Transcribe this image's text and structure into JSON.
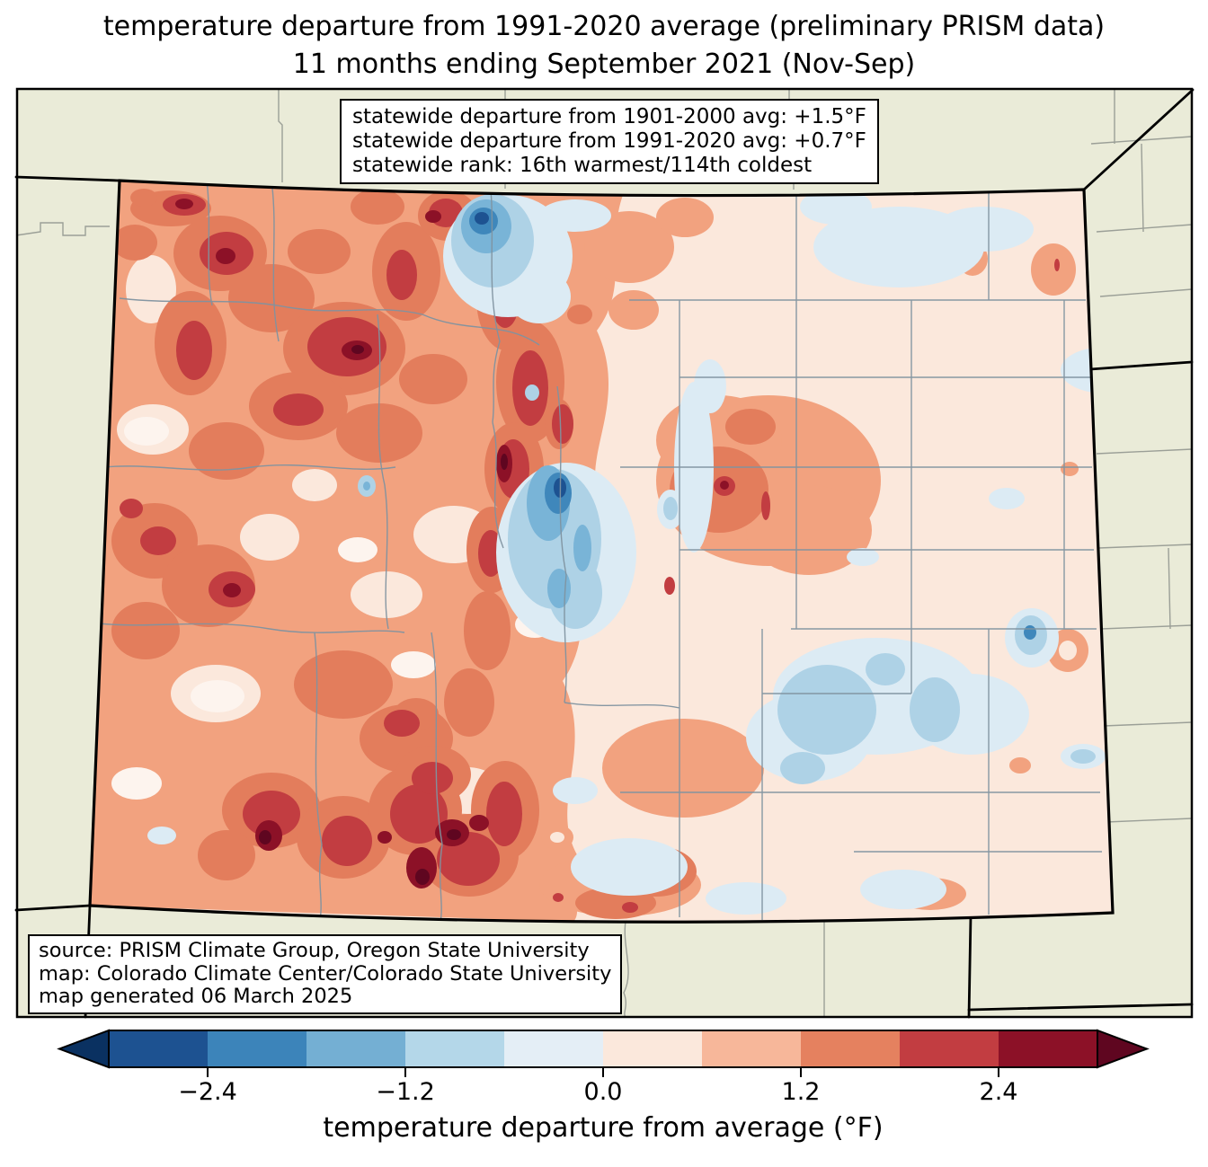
{
  "title": {
    "line1": "temperature departure from 1991-2020 average (preliminary PRISM data)",
    "line2": "11 months ending September 2021 (Nov-Sep)"
  },
  "stats_box": {
    "line1": "statewide departure from 1901-2000 avg: +1.5°F",
    "line2": "statewide departure from 1991-2020 avg: +0.7°F",
    "line3": "statewide rank: 16th warmest/114th coldest"
  },
  "source_box": {
    "line1": "source: PRISM Climate Group, Oregon State University",
    "line2": "map: Colorado Climate Center/Colorado State University",
    "line3": "map generated 06 March 2025"
  },
  "colorbar": {
    "label": "temperature departure from average (°F)",
    "tick_labels": [
      "−2.4",
      "−1.2",
      "0.0",
      "1.2",
      "2.4"
    ],
    "tick_values": [
      -2.4,
      -1.2,
      0.0,
      1.2,
      2.4
    ],
    "range": [
      -3.0,
      3.0
    ],
    "segment_colors": [
      "#1d5291",
      "#3c84ba",
      "#74afd3",
      "#b4d7e9",
      "#e4eef6",
      "#fbe8dc",
      "#f7b79a",
      "#e5815f",
      "#c23d41",
      "#8c1127"
    ],
    "under_color": "#0a3161",
    "over_color": "#5f0620"
  },
  "palette": {
    "beige": "#eaebd8",
    "county": "#8093a0",
    "county_out": "#9b9f97",
    "r1": "#fbe8dc",
    "rpale": "#fdf4ee",
    "r2": "#f7b79a",
    "r2m": "#f2a27f",
    "r3": "#e37d5c",
    "r4": "#c23d41",
    "r5": "#8c1127",
    "r6": "#5f0620",
    "b1": "#dcebf4",
    "b2": "#aed2e6",
    "b3": "#79b4d7",
    "b4": "#3f87bb",
    "b5": "#1d5291"
  }
}
